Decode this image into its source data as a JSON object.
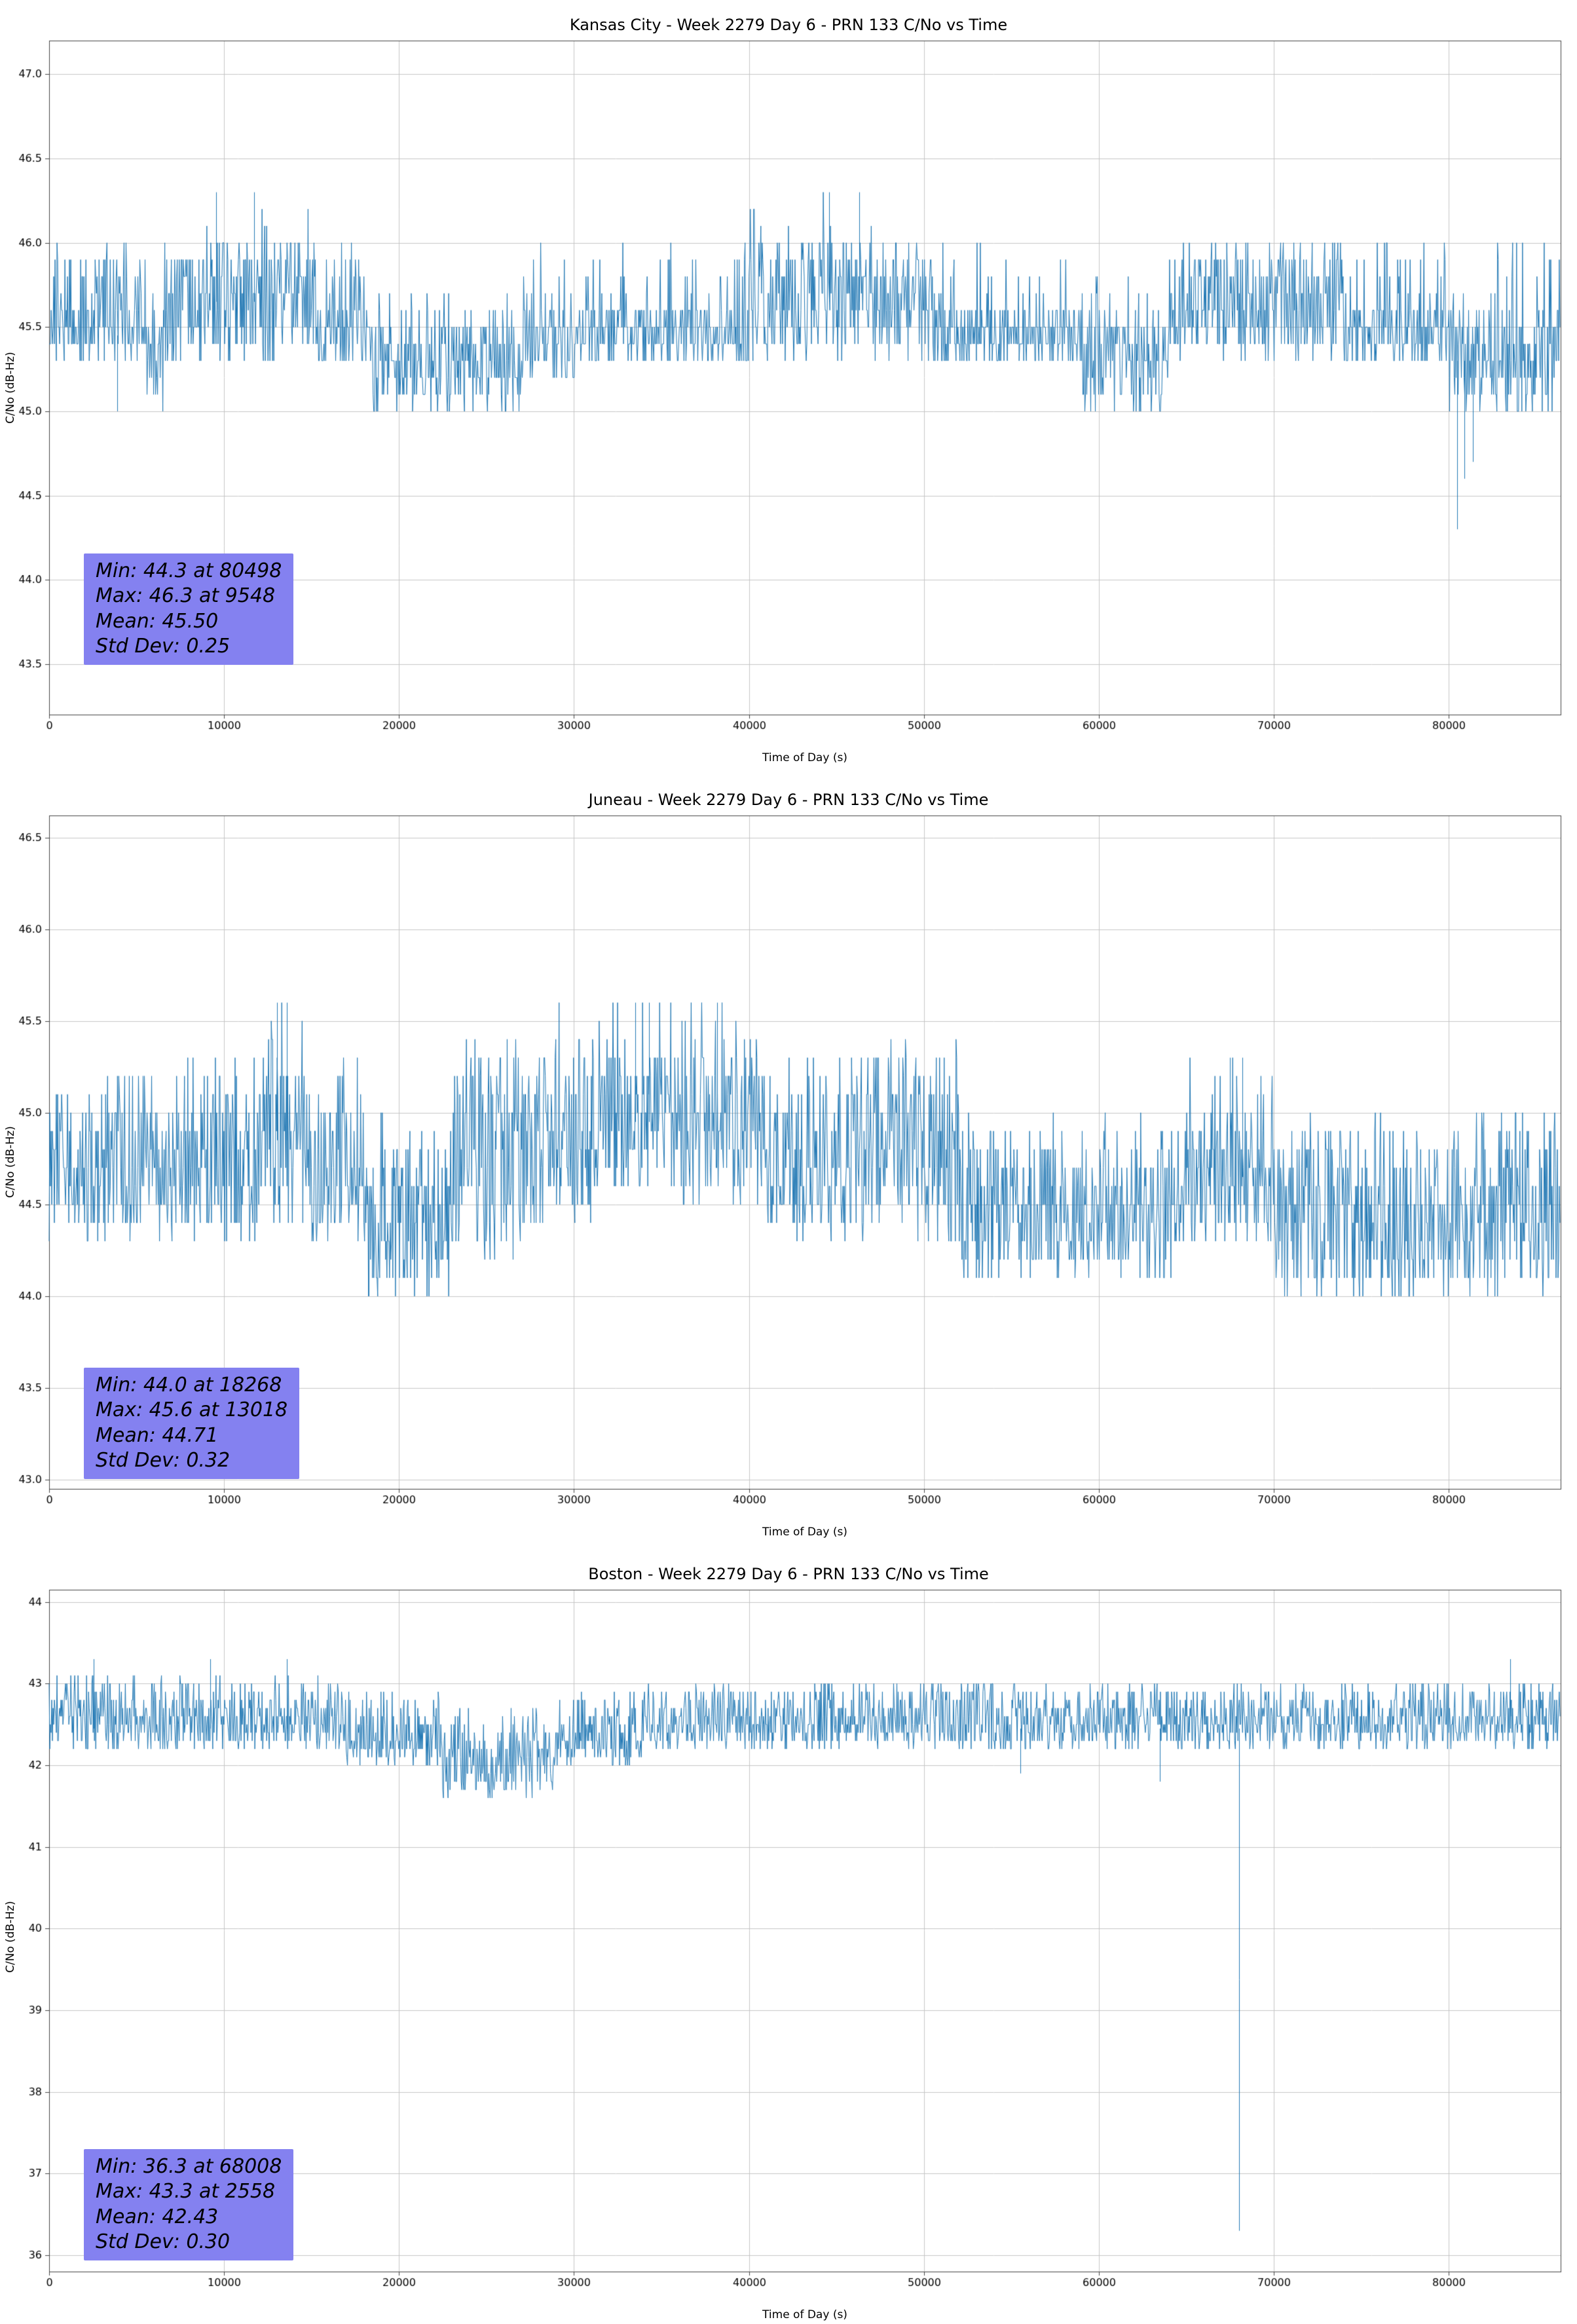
{
  "page": {
    "background": "#ffffff"
  },
  "chart_data": [
    {
      "type": "line",
      "title": "Kansas City - Week 2279 Day 6 - PRN 133 C/No vs Time",
      "xlabel": "Time of Day (s)",
      "ylabel": "C/No (dB-Hz)",
      "line_color": "#1f77b4",
      "stats_box_color": "#8481f0",
      "grid": true,
      "xlim": [
        0,
        86400
      ],
      "ylim": [
        43.2,
        47.2
      ],
      "xticks": [
        0,
        10000,
        20000,
        30000,
        40000,
        50000,
        60000,
        70000,
        80000
      ],
      "yticks": [
        43.5,
        44.0,
        44.5,
        45.0,
        45.5,
        46.0,
        46.5,
        47.0
      ],
      "ytick_decimals": 1,
      "quantization_step": 0.1,
      "stats": {
        "min": 44.3,
        "min_time": 80498,
        "max": 46.3,
        "max_time": 9548,
        "mean": 45.5,
        "std_dev": 0.25
      },
      "stats_lines": [
        "Min: 44.3 at 80498",
        "Max: 46.3 at 9548",
        "Mean: 45.50",
        "Std Dev: 0.25"
      ],
      "segments": [
        [
          0,
          5500,
          45.3,
          45.6,
          46.0,
          0.3
        ],
        [
          5500,
          6500,
          45.0,
          45.6,
          46.0,
          0.15
        ],
        [
          6500,
          15300,
          45.3,
          46.0,
          46.3,
          0.02
        ],
        [
          15300,
          18500,
          45.3,
          45.6,
          46.0,
          0.25
        ],
        [
          18500,
          27000,
          45.0,
          45.5,
          45.7,
          0.12
        ],
        [
          27000,
          30500,
          45.2,
          45.6,
          46.0,
          0.1
        ],
        [
          30500,
          40000,
          45.3,
          45.6,
          46.0,
          0.18
        ],
        [
          40000,
          51000,
          45.3,
          46.0,
          46.3,
          0.02
        ],
        [
          51000,
          59000,
          45.3,
          45.6,
          46.0,
          0.08
        ],
        [
          59000,
          64000,
          45.0,
          45.6,
          45.8,
          0.05
        ],
        [
          64000,
          74000,
          45.3,
          46.0,
          46.1,
          0.02
        ],
        [
          74000,
          80000,
          45.3,
          45.6,
          46.0,
          0.18
        ],
        [
          80000,
          82200,
          45.0,
          45.6,
          45.7,
          0.05
        ],
        [
          82200,
          86401,
          45.0,
          45.6,
          46.0,
          0.1
        ]
      ],
      "events": [
        [
          3900,
          45.0
        ],
        [
          9548,
          46.3
        ],
        [
          11700,
          46.3
        ],
        [
          44600,
          46.3
        ],
        [
          46300,
          46.3
        ],
        [
          80498,
          44.3
        ],
        [
          80900,
          44.6
        ],
        [
          81400,
          44.7
        ]
      ]
    },
    {
      "type": "line",
      "title": "Juneau - Week 2279 Day 6 - PRN 133 C/No vs Time",
      "xlabel": "Time of Day (s)",
      "ylabel": "C/No (dB-Hz)",
      "line_color": "#1f77b4",
      "stats_box_color": "#8481f0",
      "grid": true,
      "xlim": [
        0,
        86400
      ],
      "ylim": [
        42.95,
        46.62
      ],
      "xticks": [
        0,
        10000,
        20000,
        30000,
        40000,
        50000,
        60000,
        70000,
        80000
      ],
      "yticks": [
        43.0,
        43.5,
        44.0,
        44.5,
        45.0,
        45.5,
        46.0,
        46.5
      ],
      "ytick_decimals": 1,
      "quantization_step": 0.1,
      "stats": {
        "min": 44.0,
        "min_time": 18268,
        "max": 45.6,
        "max_time": 13018,
        "mean": 44.71,
        "std_dev": 0.32
      },
      "stats_lines": [
        "Min: 44.0 at 18268",
        "Max: 45.6 at 13018",
        "Mean: 44.71",
        "Std Dev: 0.32"
      ],
      "segments": [
        [
          0,
          3000,
          44.3,
          45.0,
          45.1,
          0.08
        ],
        [
          3000,
          7000,
          44.3,
          45.0,
          45.3,
          0.12
        ],
        [
          7000,
          12000,
          44.3,
          45.0,
          45.3,
          0.25
        ],
        [
          12000,
          15000,
          44.4,
          45.3,
          45.6,
          0.05
        ],
        [
          15000,
          18000,
          44.3,
          45.0,
          45.3,
          0.18
        ],
        [
          18000,
          23000,
          44.0,
          44.8,
          45.0,
          0.08
        ],
        [
          23000,
          28000,
          44.2,
          45.3,
          45.4,
          0.05
        ],
        [
          28000,
          31000,
          44.4,
          45.3,
          45.6,
          0.06
        ],
        [
          31000,
          36000,
          44.6,
          45.3,
          45.6,
          0.12
        ],
        [
          36000,
          41000,
          44.5,
          45.3,
          45.6,
          0.08
        ],
        [
          41000,
          47000,
          44.3,
          45.0,
          45.3,
          0.18
        ],
        [
          47000,
          52000,
          44.3,
          45.3,
          45.4,
          0.05
        ],
        [
          52000,
          65000,
          44.1,
          44.8,
          45.0,
          0.08
        ],
        [
          65000,
          70000,
          44.3,
          45.0,
          45.3,
          0.1
        ],
        [
          70000,
          86401,
          44.0,
          44.8,
          45.0,
          0.1
        ]
      ],
      "events": [
        [
          13018,
          45.6
        ],
        [
          13600,
          45.6
        ],
        [
          18268,
          44.0
        ],
        [
          33500,
          45.6
        ],
        [
          34300,
          45.6
        ],
        [
          38200,
          45.6
        ],
        [
          67500,
          45.3
        ],
        [
          68200,
          45.3
        ]
      ]
    },
    {
      "type": "line",
      "title": "Boston - Week 2279 Day 6 - PRN 133 C/No vs Time",
      "xlabel": "Time of Day (s)",
      "ylabel": "C/No (dB-Hz)",
      "line_color": "#1f77b4",
      "stats_box_color": "#8481f0",
      "grid": true,
      "xlim": [
        0,
        86400
      ],
      "ylim": [
        35.8,
        44.15
      ],
      "xticks": [
        0,
        10000,
        20000,
        30000,
        40000,
        50000,
        60000,
        70000,
        80000
      ],
      "yticks": [
        36,
        37,
        38,
        39,
        40,
        41,
        42,
        43,
        44
      ],
      "ytick_decimals": 0,
      "quantization_step": 0.1,
      "stats": {
        "min": 36.3,
        "min_time": 68008,
        "max": 43.3,
        "max_time": 2558,
        "mean": 42.43,
        "std_dev": 0.3
      },
      "stats_lines": [
        "Min: 36.3 at 68008",
        "Max: 43.3 at 2558",
        "Mean: 42.43",
        "Std Dev: 0.30"
      ],
      "segments": [
        [
          0,
          17000,
          42.2,
          42.7,
          43.1,
          0.3
        ],
        [
          17000,
          22500,
          42.0,
          42.5,
          42.9,
          0.22
        ],
        [
          22500,
          29000,
          41.6,
          42.4,
          42.7,
          0.12
        ],
        [
          29000,
          34000,
          42.0,
          42.6,
          42.9,
          0.18
        ],
        [
          34000,
          86401,
          42.2,
          42.7,
          43.0,
          0.28
        ]
      ],
      "events": [
        [
          2558,
          43.3
        ],
        [
          9200,
          43.3
        ],
        [
          13600,
          43.3
        ],
        [
          55500,
          41.9
        ],
        [
          63500,
          41.8
        ],
        [
          68008,
          36.3
        ],
        [
          83500,
          43.3
        ]
      ]
    }
  ]
}
